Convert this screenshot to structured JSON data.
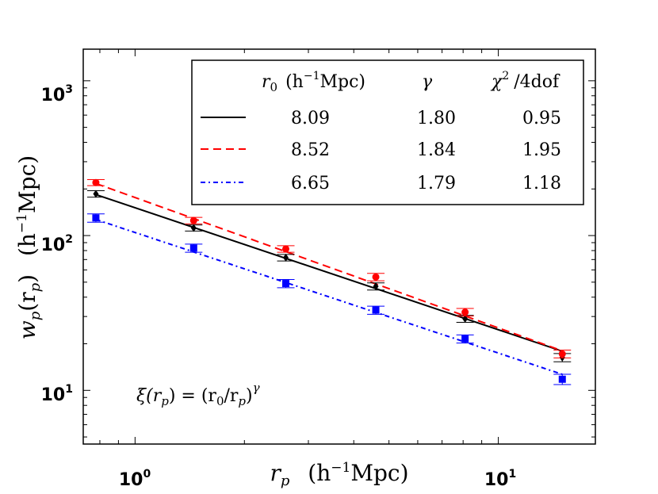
{
  "chart_data": {
    "type": "line",
    "xscale": "log",
    "yscale": "log",
    "xlim": [
      0.72,
      18.5
    ],
    "ylim": [
      4.5,
      1600
    ],
    "xlabel": {
      "main": "r",
      "sub": "p",
      "unit": "(h",
      "unit_sup": "−1",
      "unit_end": "Mpc)"
    },
    "ylabel": {
      "main": "w",
      "sub": "p",
      "arg": "(r",
      "arg_sub": "p",
      "arg_end": ")",
      "unit": "(h",
      "unit_sup": "−1",
      "unit_end": "Mpc)"
    },
    "xticks": [
      {
        "value": 1,
        "base": "10",
        "exp": "0"
      },
      {
        "value": 10,
        "base": "10",
        "exp": "1"
      }
    ],
    "yticks": [
      {
        "value": 10,
        "base": "10",
        "exp": "1"
      },
      {
        "value": 100,
        "base": "10",
        "exp": "2"
      },
      {
        "value": 1000,
        "base": "10",
        "exp": "3"
      }
    ],
    "legend": {
      "position": "top-right",
      "header": {
        "r0": "r",
        "r0_sub": "0",
        "r0_unit": "(h",
        "r0_unit_sup": "−1",
        "r0_unit_end": "Mpc)",
        "gamma": "γ",
        "chi": "χ",
        "chi_sup": "2",
        "chi_rest": "/4dof"
      }
    },
    "annotation": {
      "lhs": "ξ(r",
      "lhs_sub": "p",
      "mid": ") = (r",
      "mid_sub": "0",
      "rhs": "/r",
      "rhs_sub": "p",
      "end": ")",
      "exp": "γ"
    },
    "series": [
      {
        "name": "black",
        "color": "#000000",
        "dash": "",
        "marker": "diamond",
        "r0": 8.09,
        "gamma": 1.8,
        "r0_label": "8.09",
        "gamma_label": "1.80",
        "chi_label": "0.95",
        "x": [
          0.78,
          1.45,
          2.6,
          4.6,
          8.1,
          15.0
        ],
        "y": [
          186,
          112,
          72,
          47,
          29,
          16.3
        ],
        "err": [
          9,
          5,
          3.5,
          2.5,
          1.5,
          1.0
        ],
        "line_x": [
          0.78,
          15.0
        ],
        "line_y": [
          184,
          17.9
        ]
      },
      {
        "name": "red",
        "color": "#ff0000",
        "dash": "10 6",
        "marker": "circle",
        "r0": 8.52,
        "gamma": 1.84,
        "r0_label": "8.52",
        "gamma_label": "1.84",
        "chi_label": "1.95",
        "x": [
          0.78,
          1.45,
          2.6,
          4.6,
          8.1,
          15.0
        ],
        "y": [
          220,
          125,
          82,
          54,
          32,
          17.2
        ],
        "err": [
          10,
          6,
          4,
          3,
          1.8,
          1.0
        ],
        "line_x": [
          0.78,
          15.0
        ],
        "line_y": [
          217,
          18.0
        ]
      },
      {
        "name": "blue",
        "color": "#0000ff",
        "dash": "6 4 2 4",
        "marker": "square",
        "r0": 6.65,
        "gamma": 1.79,
        "r0_label": "6.65",
        "gamma_label": "1.79",
        "chi_label": "1.18",
        "x": [
          0.78,
          1.45,
          2.6,
          4.6,
          8.1,
          15.0
        ],
        "y": [
          130,
          83,
          49,
          33,
          21.5,
          11.8
        ],
        "err": [
          8,
          5,
          3,
          2,
          1.3,
          0.9
        ],
        "line_x": [
          0.78,
          15.0
        ],
        "line_y": [
          127,
          12.7
        ]
      }
    ]
  }
}
